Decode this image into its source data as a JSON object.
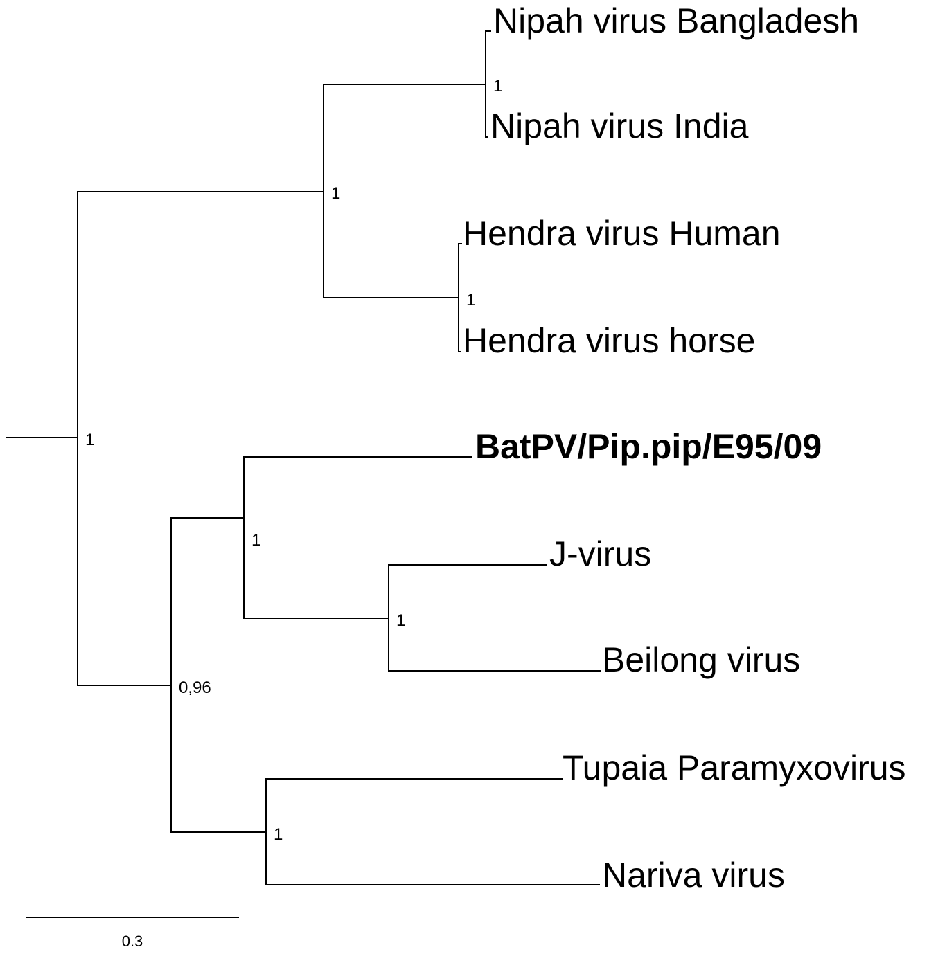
{
  "tree": {
    "taxa": [
      {
        "id": "nipah-bangladesh",
        "label": "Nipah virus Bangladesh"
      },
      {
        "id": "nipah-india",
        "label": "Nipah virus India"
      },
      {
        "id": "hendra-human",
        "label": "Hendra virus Human"
      },
      {
        "id": "hendra-horse",
        "label": "Hendra virus horse"
      },
      {
        "id": "batpv",
        "label": "BatPV/Pip.pip/E95/09",
        "color": "#ff0000",
        "highlighted": true
      },
      {
        "id": "j-virus",
        "label": "J-virus"
      },
      {
        "id": "beilong",
        "label": "Beilong virus"
      },
      {
        "id": "tupaia",
        "label": "Tupaia Paramyxovirus"
      },
      {
        "id": "nariva",
        "label": "Nariva virus"
      }
    ],
    "support_values": {
      "root": "1",
      "henipavirus": "1",
      "nipah": "1",
      "hendra": "1",
      "rodent_bat_clade": "0,96",
      "batpv_jbeilong": "1",
      "j_beilong": "1",
      "tupaia_nariva": "1"
    },
    "scale_bar": {
      "label": "0.3"
    }
  }
}
